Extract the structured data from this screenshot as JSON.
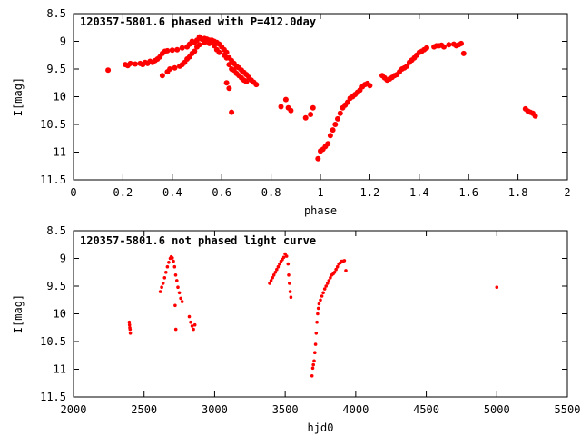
{
  "chart_data": [
    {
      "type": "scatter",
      "title": "120357-5801.6 phased with P=412.0day",
      "xlabel": "phase",
      "ylabel": "I[mag]",
      "xlim": [
        0,
        2
      ],
      "ylim": [
        11.5,
        8.5
      ],
      "y_inverted": true,
      "x_ticks": [
        "0",
        "0.2",
        "0.4",
        "0.6",
        "0.8",
        "1",
        "1.2",
        "1.4",
        "1.6",
        "1.8",
        "2"
      ],
      "y_ticks": [
        "8.5",
        "9",
        "9.5",
        "10",
        "10.5",
        "11",
        "11.5"
      ],
      "marker_color": "#ff0000",
      "series": [
        {
          "points": [
            [
              0.14,
              9.52
            ],
            [
              0.21,
              9.42
            ],
            [
              0.22,
              9.44
            ],
            [
              0.23,
              9.4
            ],
            [
              0.25,
              9.41
            ],
            [
              0.27,
              9.4
            ],
            [
              0.28,
              9.42
            ],
            [
              0.29,
              9.38
            ],
            [
              0.3,
              9.4
            ],
            [
              0.31,
              9.36
            ],
            [
              0.32,
              9.38
            ],
            [
              0.33,
              9.35
            ],
            [
              0.34,
              9.32
            ],
            [
              0.35,
              9.28
            ],
            [
              0.36,
              9.22
            ],
            [
              0.37,
              9.18
            ],
            [
              0.38,
              9.17
            ],
            [
              0.4,
              9.16
            ],
            [
              0.42,
              9.15
            ],
            [
              0.44,
              9.12
            ],
            [
              0.46,
              9.1
            ],
            [
              0.47,
              9.05
            ],
            [
              0.48,
              9.0
            ],
            [
              0.49,
              9.02
            ],
            [
              0.5,
              8.98
            ],
            [
              0.51,
              8.92
            ],
            [
              0.52,
              8.96
            ],
            [
              0.53,
              8.95
            ],
            [
              0.54,
              8.96
            ],
            [
              0.55,
              8.98
            ],
            [
              0.56,
              8.98
            ],
            [
              0.57,
              9.0
            ],
            [
              0.58,
              9.02
            ],
            [
              0.59,
              9.05
            ],
            [
              0.6,
              9.1
            ],
            [
              0.61,
              9.15
            ],
            [
              0.62,
              9.2
            ],
            [
              0.63,
              9.3
            ],
            [
              0.64,
              9.35
            ],
            [
              0.65,
              9.4
            ],
            [
              0.66,
              9.45
            ],
            [
              0.67,
              9.48
            ],
            [
              0.68,
              9.52
            ],
            [
              0.69,
              9.56
            ],
            [
              0.7,
              9.6
            ],
            [
              0.71,
              9.65
            ],
            [
              0.72,
              9.7
            ],
            [
              0.73,
              9.74
            ],
            [
              0.74,
              9.78
            ],
            [
              0.36,
              9.62
            ],
            [
              0.38,
              9.55
            ],
            [
              0.39,
              9.5
            ],
            [
              0.41,
              9.48
            ],
            [
              0.43,
              9.45
            ],
            [
              0.44,
              9.42
            ],
            [
              0.45,
              9.38
            ],
            [
              0.46,
              9.32
            ],
            [
              0.47,
              9.28
            ],
            [
              0.48,
              9.22
            ],
            [
              0.49,
              9.18
            ],
            [
              0.5,
              9.1
            ],
            [
              0.51,
              9.06
            ],
            [
              0.53,
              9.02
            ],
            [
              0.55,
              9.04
            ],
            [
              0.57,
              9.08
            ],
            [
              0.58,
              9.15
            ],
            [
              0.59,
              9.2
            ],
            [
              0.61,
              9.25
            ],
            [
              0.62,
              9.3
            ],
            [
              0.63,
              9.42
            ],
            [
              0.64,
              9.5
            ],
            [
              0.65,
              9.52
            ],
            [
              0.66,
              9.58
            ],
            [
              0.67,
              9.62
            ],
            [
              0.68,
              9.66
            ],
            [
              0.69,
              9.7
            ],
            [
              0.7,
              9.73
            ],
            [
              0.62,
              9.75
            ],
            [
              0.63,
              9.85
            ],
            [
              0.64,
              10.28
            ],
            [
              0.84,
              10.18
            ],
            [
              0.86,
              10.05
            ],
            [
              0.87,
              10.2
            ],
            [
              0.88,
              10.25
            ],
            [
              0.94,
              10.38
            ],
            [
              0.96,
              10.32
            ],
            [
              0.97,
              10.2
            ],
            [
              0.99,
              11.12
            ],
            [
              1.0,
              10.98
            ],
            [
              1.01,
              10.95
            ],
            [
              1.02,
              10.9
            ],
            [
              1.03,
              10.85
            ],
            [
              1.04,
              10.7
            ],
            [
              1.05,
              10.6
            ],
            [
              1.06,
              10.5
            ],
            [
              1.07,
              10.4
            ],
            [
              1.08,
              10.3
            ],
            [
              1.09,
              10.2
            ],
            [
              1.1,
              10.15
            ],
            [
              1.11,
              10.1
            ],
            [
              1.12,
              10.03
            ],
            [
              1.13,
              10.0
            ],
            [
              1.14,
              9.96
            ],
            [
              1.15,
              9.92
            ],
            [
              1.16,
              9.88
            ],
            [
              1.17,
              9.82
            ],
            [
              1.18,
              9.78
            ],
            [
              1.19,
              9.76
            ],
            [
              1.2,
              9.8
            ],
            [
              1.25,
              9.62
            ],
            [
              1.26,
              9.66
            ],
            [
              1.27,
              9.7
            ],
            [
              1.28,
              9.68
            ],
            [
              1.29,
              9.65
            ],
            [
              1.3,
              9.62
            ],
            [
              1.31,
              9.6
            ],
            [
              1.32,
              9.55
            ],
            [
              1.33,
              9.5
            ],
            [
              1.34,
              9.48
            ],
            [
              1.35,
              9.45
            ],
            [
              1.36,
              9.38
            ],
            [
              1.37,
              9.34
            ],
            [
              1.38,
              9.3
            ],
            [
              1.39,
              9.25
            ],
            [
              1.4,
              9.2
            ],
            [
              1.41,
              9.18
            ],
            [
              1.42,
              9.15
            ],
            [
              1.43,
              9.12
            ],
            [
              1.46,
              9.1
            ],
            [
              1.47,
              9.08
            ],
            [
              1.48,
              9.08
            ],
            [
              1.49,
              9.07
            ],
            [
              1.5,
              9.1
            ],
            [
              1.52,
              9.06
            ],
            [
              1.54,
              9.05
            ],
            [
              1.55,
              9.08
            ],
            [
              1.56,
              9.06
            ],
            [
              1.57,
              9.04
            ],
            [
              1.58,
              9.22
            ],
            [
              1.83,
              10.22
            ],
            [
              1.84,
              10.26
            ],
            [
              1.85,
              10.28
            ],
            [
              1.86,
              10.3
            ],
            [
              1.87,
              10.35
            ]
          ]
        }
      ]
    },
    {
      "type": "scatter",
      "title": "120357-5801.6 not phased light curve",
      "xlabel": "hjd0",
      "ylabel": "I[mag]",
      "xlim": [
        2000,
        5500
      ],
      "ylim": [
        11.5,
        8.5
      ],
      "y_inverted": true,
      "x_ticks": [
        "2000",
        "2500",
        "3000",
        "3500",
        "4000",
        "4500",
        "5000",
        "5500"
      ],
      "y_ticks": [
        "8.5",
        "9",
        "9.5",
        "10",
        "10.5",
        "11",
        "11.5"
      ],
      "marker_color": "#ff0000",
      "series": [
        {
          "points": [
            [
              2395,
              10.15
            ],
            [
              2397,
              10.2
            ],
            [
              2399,
              10.25
            ],
            [
              2401,
              10.28
            ],
            [
              2403,
              10.35
            ],
            [
              2615,
              9.6
            ],
            [
              2625,
              9.52
            ],
            [
              2635,
              9.45
            ],
            [
              2645,
              9.35
            ],
            [
              2655,
              9.25
            ],
            [
              2665,
              9.15
            ],
            [
              2675,
              9.07
            ],
            [
              2685,
              9.0
            ],
            [
              2692,
              8.97
            ],
            [
              2700,
              8.99
            ],
            [
              2708,
              9.05
            ],
            [
              2716,
              9.15
            ],
            [
              2724,
              9.3
            ],
            [
              2732,
              9.4
            ],
            [
              2740,
              9.52
            ],
            [
              2750,
              9.62
            ],
            [
              2760,
              9.72
            ],
            [
              2770,
              9.78
            ],
            [
              2720,
              9.85
            ],
            [
              2725,
              10.28
            ],
            [
              2820,
              10.05
            ],
            [
              2830,
              10.15
            ],
            [
              2840,
              10.22
            ],
            [
              2850,
              10.28
            ],
            [
              2860,
              10.2
            ],
            [
              3390,
              9.45
            ],
            [
              3400,
              9.4
            ],
            [
              3410,
              9.35
            ],
            [
              3420,
              9.3
            ],
            [
              3430,
              9.25
            ],
            [
              3440,
              9.2
            ],
            [
              3450,
              9.15
            ],
            [
              3460,
              9.1
            ],
            [
              3470,
              9.05
            ],
            [
              3480,
              9.02
            ],
            [
              3490,
              8.98
            ],
            [
              3500,
              8.92
            ],
            [
              3510,
              8.96
            ],
            [
              3520,
              9.1
            ],
            [
              3525,
              9.3
            ],
            [
              3530,
              9.45
            ],
            [
              3535,
              9.6
            ],
            [
              3540,
              9.7
            ],
            [
              3690,
              11.12
            ],
            [
              3695,
              10.98
            ],
            [
              3700,
              10.92
            ],
            [
              3705,
              10.85
            ],
            [
              3710,
              10.7
            ],
            [
              3715,
              10.55
            ],
            [
              3720,
              10.35
            ],
            [
              3725,
              10.15
            ],
            [
              3730,
              10.0
            ],
            [
              3735,
              9.9
            ],
            [
              3740,
              9.82
            ],
            [
              3750,
              9.75
            ],
            [
              3760,
              9.68
            ],
            [
              3770,
              9.62
            ],
            [
              3780,
              9.55
            ],
            [
              3790,
              9.5
            ],
            [
              3800,
              9.45
            ],
            [
              3810,
              9.4
            ],
            [
              3820,
              9.35
            ],
            [
              3830,
              9.3
            ],
            [
              3840,
              9.28
            ],
            [
              3850,
              9.25
            ],
            [
              3860,
              9.2
            ],
            [
              3870,
              9.15
            ],
            [
              3880,
              9.1
            ],
            [
              3890,
              9.08
            ],
            [
              3900,
              9.05
            ],
            [
              3910,
              9.05
            ],
            [
              3920,
              9.04
            ],
            [
              3930,
              9.22
            ],
            [
              5000,
              9.52
            ]
          ]
        }
      ]
    }
  ]
}
